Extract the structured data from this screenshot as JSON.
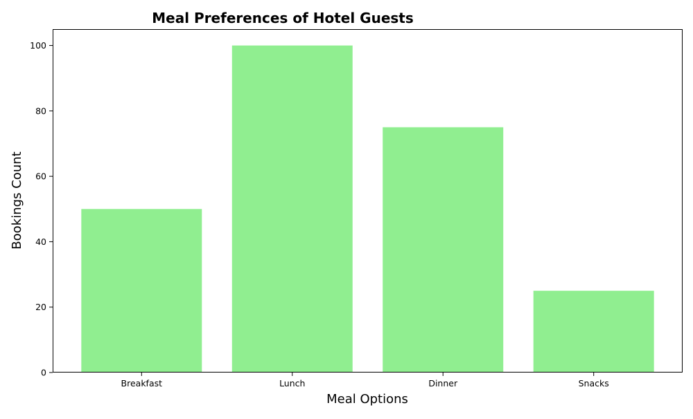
{
  "chart_data": {
    "type": "bar",
    "title": "Meal Preferences of Hotel Guests",
    "xlabel": "Meal Options",
    "ylabel": "Bookings Count",
    "categories": [
      "Breakfast",
      "Lunch",
      "Dinner",
      "Snacks"
    ],
    "values": [
      50,
      100,
      75,
      25
    ],
    "ylim": [
      0,
      105
    ],
    "yticks": [
      0,
      20,
      40,
      60,
      80,
      100
    ],
    "bar_color": "#90ee90",
    "grid": false,
    "legend": "none"
  }
}
